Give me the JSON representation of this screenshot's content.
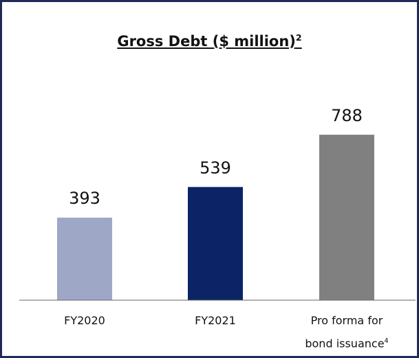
{
  "chart_data": {
    "type": "bar",
    "title": "Gross Debt ($ million)",
    "title_note": "2",
    "categories": [
      "FY2020",
      "FY2021",
      "Pro forma for bond issuance"
    ],
    "category_notes": [
      null,
      null,
      "4"
    ],
    "values": [
      393,
      539,
      788
    ],
    "colors": [
      "#9ea8c6",
      "#0c2366",
      "#808080"
    ],
    "ylim": [
      0,
      1000
    ]
  }
}
